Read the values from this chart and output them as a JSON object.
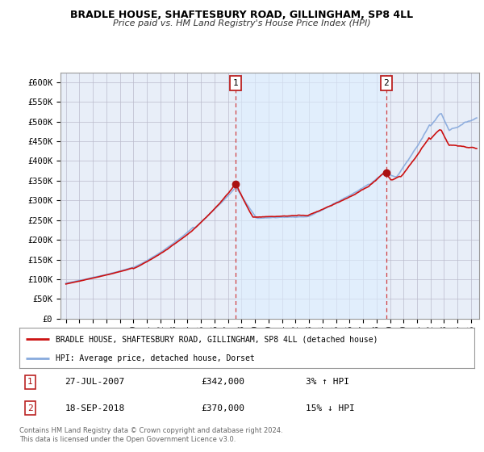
{
  "title1": "BRADLE HOUSE, SHAFTESBURY ROAD, GILLINGHAM, SP8 4LL",
  "title2": "Price paid vs. HM Land Registry's House Price Index (HPI)",
  "ylabel_ticks": [
    0,
    50000,
    100000,
    150000,
    200000,
    250000,
    300000,
    350000,
    400000,
    450000,
    500000,
    550000,
    600000
  ],
  "ylabel_labels": [
    "£0",
    "£50K",
    "£100K",
    "£150K",
    "£200K",
    "£250K",
    "£300K",
    "£350K",
    "£400K",
    "£450K",
    "£500K",
    "£550K",
    "£600K"
  ],
  "ylim": [
    0,
    625000
  ],
  "xlim_start": 1994.6,
  "xlim_end": 2025.6,
  "line_color_property": "#cc1111",
  "line_color_hpi": "#88aadd",
  "marker_color": "#aa1111",
  "vline_color": "#cc2222",
  "shade_color": "#ddeeff",
  "legend_label1": "BRADLE HOUSE, SHAFTESBURY ROAD, GILLINGHAM, SP8 4LL (detached house)",
  "legend_label2": "HPI: Average price, detached house, Dorset",
  "marker1_x": 2007.57,
  "marker1_y": 342000,
  "marker2_x": 2018.72,
  "marker2_y": 370000,
  "annotation1_date": "27-JUL-2007",
  "annotation1_price": "£342,000",
  "annotation1_hpi": "3% ↑ HPI",
  "annotation2_date": "18-SEP-2018",
  "annotation2_price": "£370,000",
  "annotation2_hpi": "15% ↓ HPI",
  "footnote1": "Contains HM Land Registry data © Crown copyright and database right 2024.",
  "footnote2": "This data is licensed under the Open Government Licence v3.0.",
  "bg_color": "#ffffff",
  "plot_bg_color": "#e8eef8",
  "grid_color": "#bbbbcc"
}
